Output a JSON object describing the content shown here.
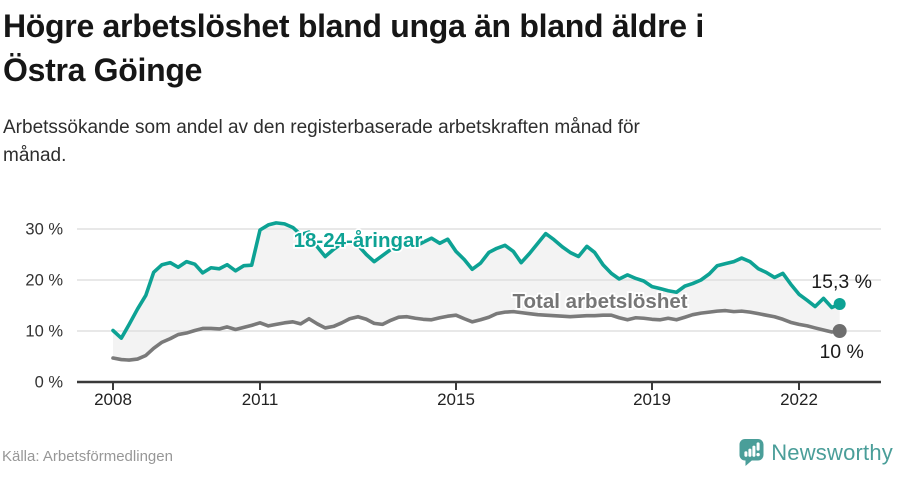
{
  "header": {
    "title_lines": [
      "Högre arbetslöshet bland unga än bland äldre i",
      "Östra Göinge"
    ],
    "subtitle_lines": [
      "Arbetssökande som andel av den registerbaserade arbetskraften månad för",
      "månad."
    ]
  },
  "footer": {
    "source": "Källa: Arbetsförmedlingen",
    "brand": "Newsworthy"
  },
  "colors": {
    "teal": "#0DA294",
    "gray_line": "#7A7A7A",
    "gray_dot": "#6E6E6E",
    "grid": "#DBDBDB",
    "axis": "#3A3A3A",
    "label_dark": "#1A1A1A",
    "area_fill": "#F3F3F3",
    "logo_teal": "#4A9E99"
  },
  "chart_data": {
    "type": "line",
    "title": "Högre arbetslöshet bland unga än bland äldre i Östra Göinge",
    "subtitle": "Arbetssökande som andel av den registerbaserade arbetskraften månad för månad.",
    "ylabel": "",
    "xlabel": "",
    "ylim": [
      0,
      33
    ],
    "xlim": [
      2008,
      2023.2
    ],
    "grid": "horizontal",
    "area_fill_between_series": true,
    "y_ticks": [
      {
        "value": 0,
        "label": "0 %"
      },
      {
        "value": 10,
        "label": "10 %"
      },
      {
        "value": 20,
        "label": "20 %"
      },
      {
        "value": 30,
        "label": "30 %"
      }
    ],
    "x_ticks": [
      {
        "value": 2008,
        "label": "2008"
      },
      {
        "value": 2011,
        "label": "2011"
      },
      {
        "value": 2015,
        "label": "2015"
      },
      {
        "value": 2019,
        "label": "2019"
      },
      {
        "value": 2022,
        "label": "2022"
      }
    ],
    "x": [
      2008,
      2008.17,
      2008.33,
      2008.5,
      2008.67,
      2008.83,
      2009,
      2009.17,
      2009.33,
      2009.5,
      2009.67,
      2009.83,
      2010,
      2010.17,
      2010.33,
      2010.5,
      2010.67,
      2010.83,
      2011,
      2011.17,
      2011.33,
      2011.5,
      2011.67,
      2011.83,
      2012,
      2012.17,
      2012.33,
      2012.5,
      2012.67,
      2012.83,
      2013,
      2013.17,
      2013.33,
      2013.5,
      2013.67,
      2013.83,
      2014,
      2014.17,
      2014.33,
      2014.5,
      2014.67,
      2014.83,
      2015,
      2015.17,
      2015.33,
      2015.5,
      2015.67,
      2015.83,
      2016,
      2016.17,
      2016.33,
      2016.5,
      2016.67,
      2016.83,
      2017,
      2017.17,
      2017.33,
      2017.5,
      2017.67,
      2017.83,
      2018,
      2018.17,
      2018.33,
      2018.5,
      2018.67,
      2018.83,
      2019,
      2019.17,
      2019.33,
      2019.5,
      2019.67,
      2019.83,
      2020,
      2020.17,
      2020.33,
      2020.5,
      2020.67,
      2020.83,
      2021,
      2021.17,
      2021.33,
      2021.5,
      2021.67,
      2021.83,
      2022,
      2022.17,
      2022.33,
      2022.5,
      2022.67,
      2022.83
    ],
    "series": [
      {
        "name": "18-24-åringar",
        "color": "#0DA294",
        "end_label": "15,3 %",
        "end_value": 15.3,
        "end_label_position": "above",
        "values": [
          10.1,
          8.6,
          11.3,
          14.3,
          17.0,
          21.5,
          23.0,
          23.4,
          22.5,
          23.6,
          23.1,
          21.4,
          22.4,
          22.2,
          23.0,
          21.8,
          22.8,
          22.9,
          29.8,
          30.8,
          31.2,
          31.0,
          30.3,
          28.9,
          29.4,
          26.5,
          24.6,
          26.0,
          27.2,
          27.4,
          26.8,
          25.0,
          23.6,
          24.8,
          26.0,
          26.8,
          27.4,
          26.6,
          27.4,
          28.2,
          27.2,
          28.0,
          25.6,
          24.0,
          22.1,
          23.3,
          25.4,
          26.2,
          26.8,
          25.6,
          23.4,
          25.2,
          27.2,
          29.1,
          27.9,
          26.5,
          25.4,
          24.6,
          26.6,
          25.4,
          23.0,
          21.3,
          20.2,
          21.0,
          20.3,
          19.8,
          18.7,
          18.3,
          17.9,
          17.6,
          18.8,
          19.3,
          20.0,
          21.2,
          22.8,
          23.2,
          23.6,
          24.3,
          23.6,
          22.2,
          21.5,
          20.5,
          21.3,
          19.2,
          17.2,
          16.0,
          14.8,
          16.4,
          14.6,
          15.3
        ]
      },
      {
        "name": "Total arbetslöshet",
        "color": "#7A7A7A",
        "end_label": "10 %",
        "end_value": 10,
        "end_label_position": "below",
        "values": [
          4.7,
          4.4,
          4.3,
          4.5,
          5.2,
          6.6,
          7.8,
          8.5,
          9.3,
          9.6,
          10.1,
          10.5,
          10.5,
          10.4,
          10.8,
          10.3,
          10.7,
          11.1,
          11.6,
          11.0,
          11.3,
          11.6,
          11.8,
          11.4,
          12.4,
          11.4,
          10.6,
          10.9,
          11.6,
          12.4,
          12.8,
          12.3,
          11.5,
          11.3,
          12.1,
          12.7,
          12.8,
          12.5,
          12.3,
          12.2,
          12.6,
          12.9,
          13.1,
          12.4,
          11.8,
          12.2,
          12.7,
          13.4,
          13.7,
          13.8,
          13.6,
          13.4,
          13.2,
          13.1,
          13.0,
          12.9,
          12.8,
          12.9,
          13.0,
          13.0,
          13.1,
          13.1,
          12.6,
          12.2,
          12.6,
          12.5,
          12.3,
          12.2,
          12.5,
          12.2,
          12.7,
          13.2,
          13.5,
          13.7,
          13.9,
          14.0,
          13.8,
          13.9,
          13.7,
          13.4,
          13.1,
          12.8,
          12.3,
          11.7,
          11.3,
          11.0,
          10.6,
          10.2,
          9.8,
          10.0
        ]
      }
    ],
    "annotations": [
      {
        "text": "18-24-åringar",
        "x": 2013.0,
        "y": 27.8,
        "color": "#0DA294"
      },
      {
        "text": "Total arbetslöshet",
        "x": 2017.94,
        "y": 15.9,
        "color": "#767676"
      }
    ]
  }
}
